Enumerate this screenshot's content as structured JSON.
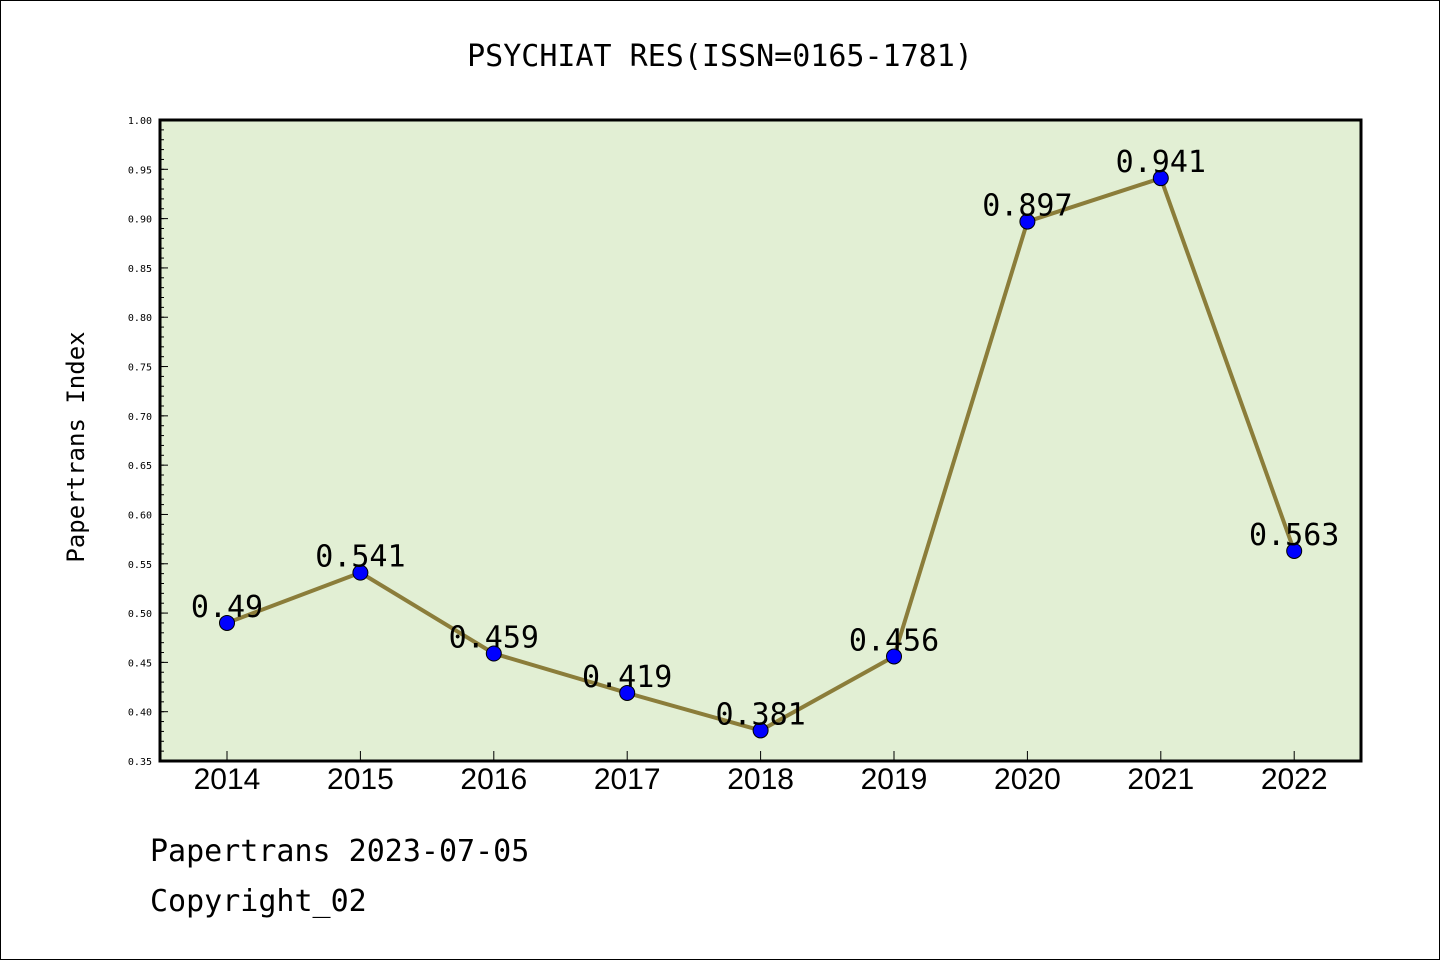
{
  "chart_data": {
    "type": "line",
    "title": "PSYCHIAT RES(ISSN=0165-1781)",
    "xlabel": "",
    "ylabel": "Papertrans Index",
    "categories": [
      "2014",
      "2015",
      "2016",
      "2017",
      "2018",
      "2019",
      "2020",
      "2021",
      "2022"
    ],
    "values": [
      0.49,
      0.541,
      0.459,
      0.419,
      0.381,
      0.456,
      0.897,
      0.941,
      0.563
    ],
    "data_labels": [
      "0.49",
      "0.541",
      "0.459",
      "0.419",
      "0.381",
      "0.456",
      "0.897",
      "0.941",
      "0.563"
    ],
    "ylim": [
      0.35,
      1.0
    ],
    "yticks": [
      "0.35",
      "0.40",
      "0.45",
      "0.50",
      "0.55",
      "0.60",
      "0.65",
      "0.70",
      "0.75",
      "0.80",
      "0.85",
      "0.90",
      "0.95",
      "1.00"
    ],
    "grid": false,
    "colors": {
      "line": "#8b7d3a",
      "marker": "#0000ff",
      "plot_background": "#e2efd4"
    }
  },
  "footer": {
    "line1": "Papertrans 2023-07-05",
    "line2": "Copyright_02"
  }
}
